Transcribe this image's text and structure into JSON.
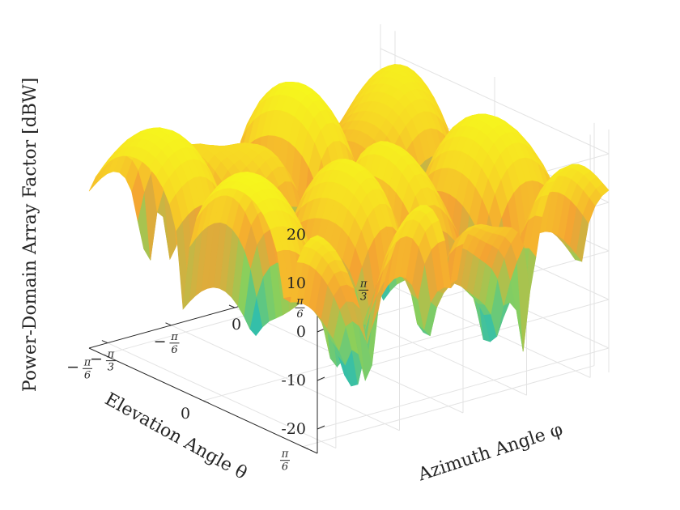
{
  "chart_data": {
    "type": "surface",
    "title": "",
    "zlabel": "Power-Domain Array Factor [dBW]",
    "xlabel": "Azimuth Angle φ",
    "ylabel": "Elevation Angle θ",
    "zlim": [
      -25,
      25
    ],
    "z_ticks": [
      {
        "value": 20,
        "label": "20"
      },
      {
        "value": 10,
        "label": "10"
      },
      {
        "value": 0,
        "label": "0"
      },
      {
        "value": -10,
        "label": "-10"
      },
      {
        "value": -20,
        "label": "-20"
      }
    ],
    "azimuth_ticks": [
      {
        "value": -1.0472,
        "label": "−π/3"
      },
      {
        "value": -0.5236,
        "label": "−π/6"
      },
      {
        "value": 0,
        "label": "0"
      },
      {
        "value": 0.5236,
        "label": "π/6"
      },
      {
        "value": 1.0472,
        "label": "π/3"
      }
    ],
    "elevation_ticks": [
      {
        "value": 0.5236,
        "label": "π/6"
      },
      {
        "value": 0,
        "label": "0"
      },
      {
        "value": -0.5236,
        "label": "−π/6"
      }
    ],
    "azimuth_range": [
      -1.2,
      1.2
    ],
    "elevation_range": [
      -0.6,
      0.6
    ],
    "z_floor_approx": -25,
    "z_peak_approx": 23,
    "colormap": [
      "#1aa6d9",
      "#29bdb3",
      "#8ccf5a",
      "#f4a233",
      "#f7d824",
      "#f6f61d"
    ],
    "grid": true
  }
}
